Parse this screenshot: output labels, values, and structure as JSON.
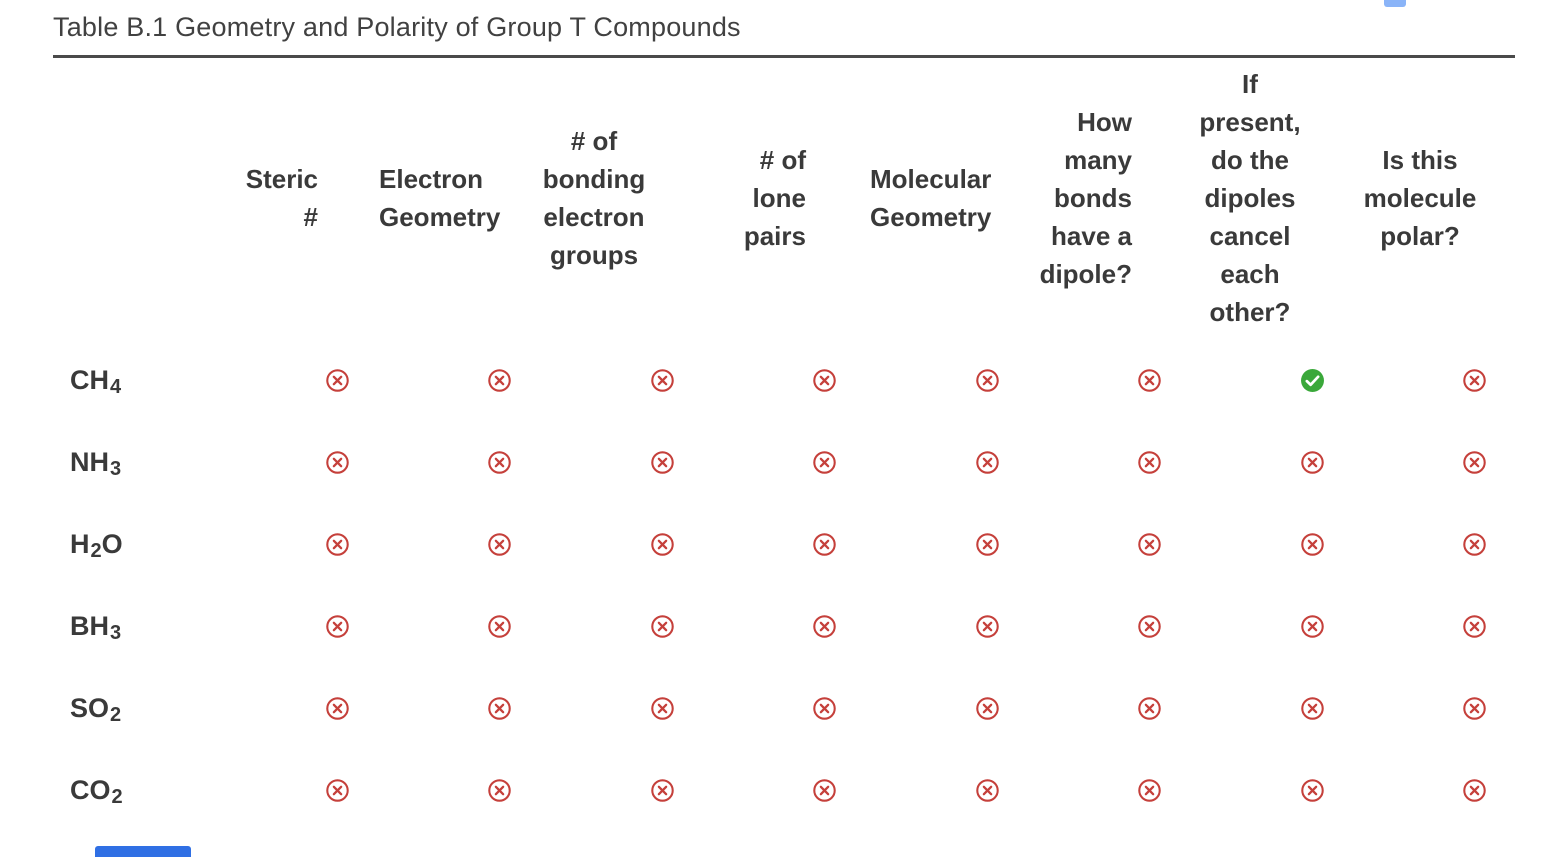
{
  "title": "Table B.1 Geometry and Polarity of Group T Compounds",
  "table": {
    "columns": [
      {
        "id": "steric-number",
        "lines": [
          "Steric",
          "#"
        ],
        "align": "right"
      },
      {
        "id": "electron-geometry",
        "lines": [
          "Electron",
          "Geometry"
        ],
        "align": "left"
      },
      {
        "id": "bonding-groups",
        "lines": [
          "# of",
          "bonding",
          "electron",
          "groups"
        ],
        "align": "center"
      },
      {
        "id": "lone-pairs",
        "lines": [
          "# of",
          "lone",
          "pairs"
        ],
        "align": "right"
      },
      {
        "id": "molecular-geometry",
        "lines": [
          "Molecular",
          "Geometry"
        ],
        "align": "left"
      },
      {
        "id": "bond-dipoles",
        "lines": [
          "How",
          "many",
          "bonds",
          "have a",
          "dipole?"
        ],
        "align": "right"
      },
      {
        "id": "dipoles-cancel",
        "lines": [
          "If",
          "present,",
          "do the",
          "dipoles",
          "cancel",
          "each",
          "other?"
        ],
        "align": "center"
      },
      {
        "id": "is-polar",
        "lines": [
          "Is this",
          "molecule",
          "polar?"
        ],
        "align": "center"
      }
    ],
    "rows": [
      {
        "id": "ch4",
        "formula": [
          {
            "text": "CH"
          },
          {
            "sub": "4"
          }
        ],
        "cells": [
          "x",
          "x",
          "x",
          "x",
          "x",
          "x",
          "check",
          "x"
        ]
      },
      {
        "id": "nh3",
        "formula": [
          {
            "text": "NH"
          },
          {
            "sub": "3"
          }
        ],
        "cells": [
          "x",
          "x",
          "x",
          "x",
          "x",
          "x",
          "x",
          "x"
        ]
      },
      {
        "id": "h2o",
        "formula": [
          {
            "text": "H"
          },
          {
            "sub": "2"
          },
          {
            "text": "O"
          }
        ],
        "cells": [
          "x",
          "x",
          "x",
          "x",
          "x",
          "x",
          "x",
          "x"
        ]
      },
      {
        "id": "bh3",
        "formula": [
          {
            "text": "BH"
          },
          {
            "sub": "3"
          }
        ],
        "cells": [
          "x",
          "x",
          "x",
          "x",
          "x",
          "x",
          "x",
          "x"
        ]
      },
      {
        "id": "so2",
        "formula": [
          {
            "text": "SO"
          },
          {
            "sub": "2"
          }
        ],
        "cells": [
          "x",
          "x",
          "x",
          "x",
          "x",
          "x",
          "x",
          "x"
        ]
      },
      {
        "id": "co2",
        "formula": [
          {
            "text": "CO"
          },
          {
            "sub": "2"
          }
        ],
        "cells": [
          "x",
          "x",
          "x",
          "x",
          "x",
          "x",
          "x",
          "x"
        ]
      }
    ]
  },
  "icons": {
    "x": {
      "name": "incorrect-icon",
      "color": "#c5403b"
    },
    "check": {
      "name": "correct-icon",
      "color": "#3aa83a",
      "check_color": "#ffffff"
    }
  },
  "artifacts": {
    "top_right_color": "#8ab4f8",
    "bottom_left_color": "#2f6fe4"
  }
}
